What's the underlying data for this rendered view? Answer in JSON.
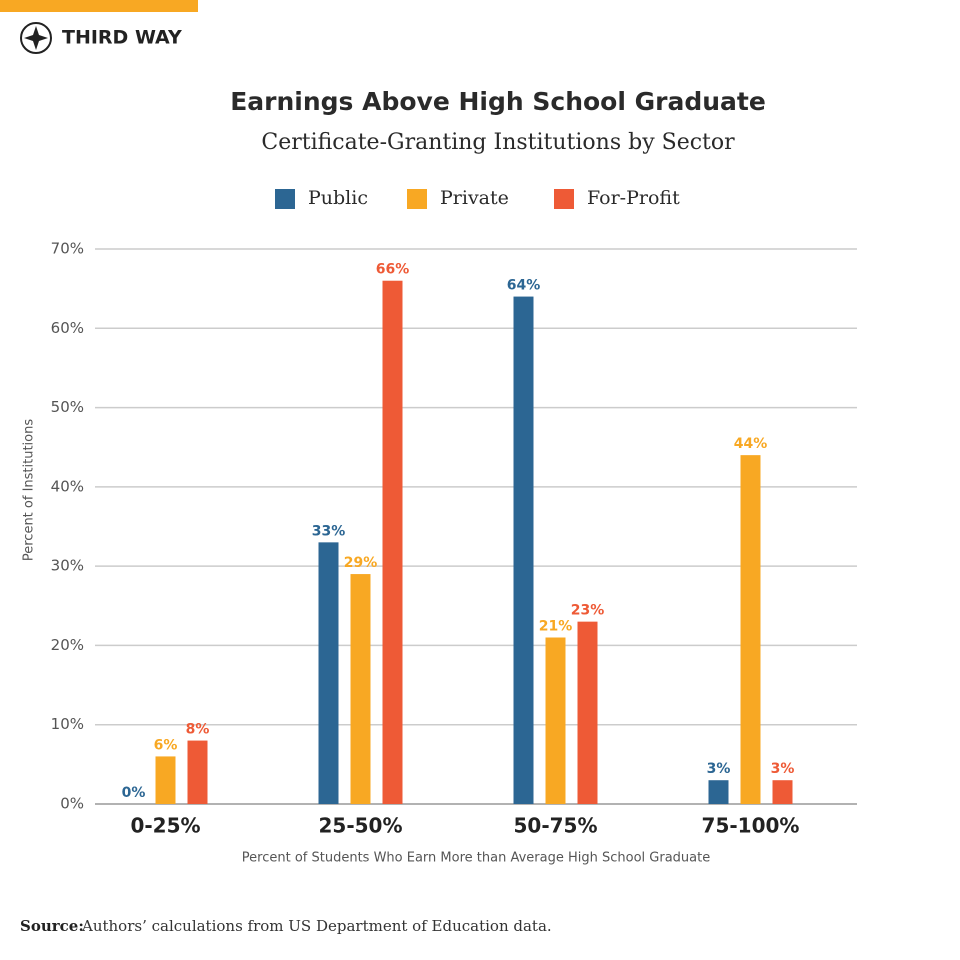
{
  "brand": "THIRD WAY",
  "source_label": "Source:",
  "source": "Authors’ calculations from US Department of Education data.",
  "chart_data": {
    "type": "bar",
    "title": "Earnings Above High School Graduate",
    "subtitle": "Certificate-Granting Institutions by Sector",
    "x_label": "Percent of Students Who Earn More than Average High School Graduate",
    "y_label": "Percent of Institutions",
    "categories": [
      "0-25%",
      "25-50%",
      "50-75%",
      "75-100%"
    ],
    "series": [
      {
        "name": "Public",
        "color": "#2c6693",
        "values": [
          0,
          33,
          64,
          3
        ],
        "value_labels": [
          "0%",
          "33%",
          "64%",
          "3%"
        ]
      },
      {
        "name": "Private",
        "color": "#f8a823",
        "values": [
          6,
          29,
          21,
          44
        ],
        "value_labels": [
          "6%",
          "29%",
          "21%",
          "44%"
        ]
      },
      {
        "name": "For-Profit",
        "color": "#ee5a36",
        "values": [
          8,
          66,
          23,
          3
        ],
        "value_labels": [
          "8%",
          "66%",
          "23%",
          "3%"
        ]
      }
    ],
    "ylim": [
      0,
      70
    ],
    "yticks": [
      {
        "value": 0,
        "label": "0%"
      },
      {
        "value": 10,
        "label": "10%"
      },
      {
        "value": 20,
        "label": "20%"
      },
      {
        "value": 30,
        "label": "30%"
      },
      {
        "value": 40,
        "label": "40%"
      },
      {
        "value": 50,
        "label": "50%"
      },
      {
        "value": 60,
        "label": "60%"
      },
      {
        "value": 70,
        "label": "70%"
      }
    ],
    "grid": true
  }
}
